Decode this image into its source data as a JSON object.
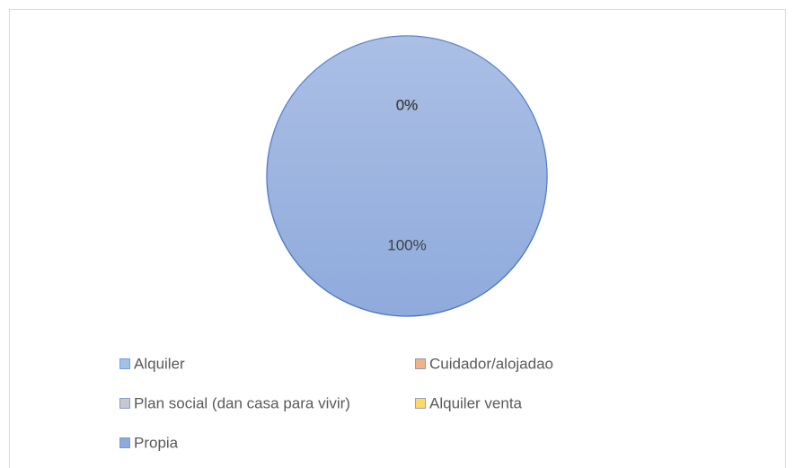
{
  "chart_data": {
    "type": "pie",
    "categories": [
      "Alquiler",
      "Cuidador/alojadao",
      "Plan social (dan casa para vivir)",
      "Alquiler venta",
      "Propia"
    ],
    "values": [
      0,
      0,
      0,
      0,
      100
    ],
    "value_labels": [
      "0%",
      "0%",
      "0%",
      "0%",
      "100%"
    ],
    "colors": [
      "#9dc3e6",
      "#f4b183",
      "#c9c9c9",
      "#ffd966",
      "#8faadc"
    ]
  }
}
